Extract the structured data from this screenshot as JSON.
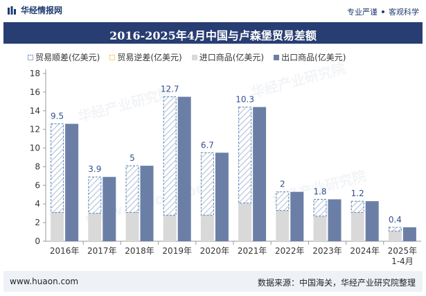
{
  "header": {
    "brand": "华经情报网",
    "tag_left": "专业严谨",
    "tag_right": "客观科学"
  },
  "title": "2016-2025年4月中国与卢森堡贸易差额",
  "legend": {
    "surplus": "贸易顺差(亿美元)",
    "deficit": "贸易逆差(亿美元)",
    "imports": "进口商品(亿美元)",
    "exports": "出口商品(亿美元)"
  },
  "colors": {
    "title_band": "#283e73",
    "exports": "#6b7fa6",
    "imports": "#d9d9d9",
    "surplus_hatch": "#b9c7da",
    "surplus_border": "#5a7fb5",
    "deficit": "#f0c020",
    "label": "#2f4f8f"
  },
  "watermarks": [
    "华经产业研究院",
    "www.huaon.com"
  ],
  "footer": {
    "website": "www.huaon.com",
    "source": "数据来源：中国海关，华经产业研究院整理"
  },
  "chart_data": {
    "type": "bar",
    "categories": [
      "2016年",
      "2017年",
      "2018年",
      "2019年",
      "2020年",
      "2021年",
      "2022年",
      "2023年",
      "2024年",
      "2025年\n1-4月"
    ],
    "ylim": [
      0,
      18
    ],
    "yticks": [
      0,
      2,
      4,
      6,
      8,
      10,
      12,
      14,
      16,
      18
    ],
    "grid": false,
    "series": [
      {
        "name": "贸易顺差(亿美元)",
        "values": [
          9.5,
          3.9,
          5,
          12.7,
          6.7,
          10.3,
          2,
          1.8,
          1.2,
          0.4
        ]
      },
      {
        "name": "贸易逆差(亿美元)",
        "values": [
          0,
          0,
          0,
          0,
          0,
          0,
          0,
          0,
          0,
          0
        ]
      },
      {
        "name": "进口商品(亿美元)",
        "values": [
          3.1,
          3.0,
          3.1,
          2.8,
          2.8,
          4.1,
          3.3,
          2.7,
          3.1,
          1.1
        ]
      },
      {
        "name": "出口商品(亿美元)",
        "values": [
          12.6,
          6.9,
          8.1,
          15.5,
          9.5,
          14.4,
          5.3,
          4.5,
          4.3,
          1.5
        ]
      }
    ],
    "data_labels": [
      "9.5",
      "3.9",
      "5",
      "12.7",
      "6.7",
      "10.3",
      "2",
      "1.8",
      "1.2",
      "0.4"
    ]
  }
}
